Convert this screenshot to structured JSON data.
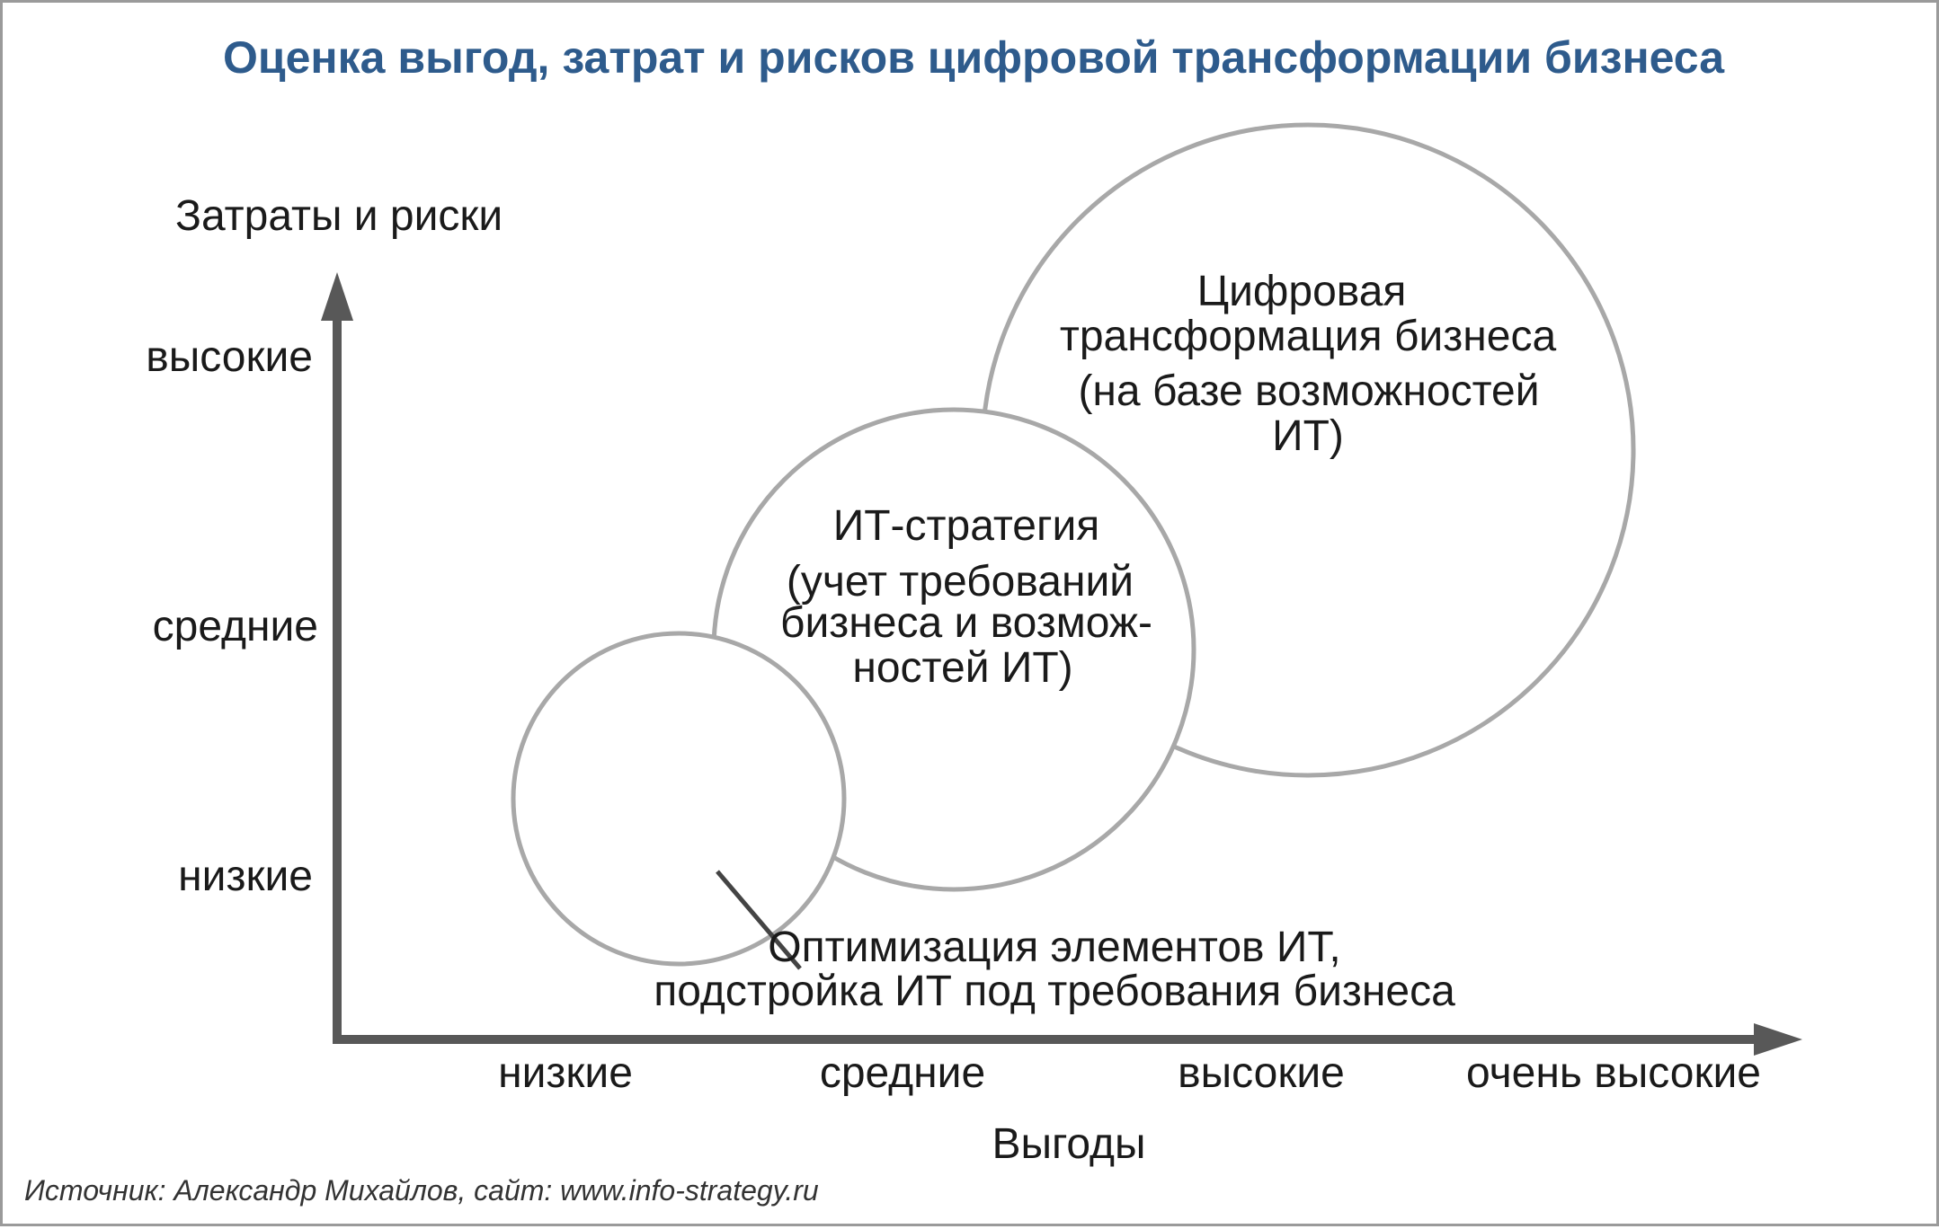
{
  "title": "Оценка выгод, затрат и рисков цифровой трансформации бизнеса",
  "y_axis": {
    "label": "Затраты и риски",
    "ticks": [
      "высокие",
      "средние",
      "низкие"
    ]
  },
  "x_axis": {
    "label": "Выгоды",
    "ticks": [
      "низкие",
      "средние",
      "высокие",
      "очень высокие"
    ]
  },
  "bubbles": [
    {
      "id": "digital-transformation",
      "lines": [
        "Цифровая",
        "трансформация бизнеса",
        "(на базе возможностей",
        "ИТ)"
      ]
    },
    {
      "id": "it-strategy",
      "lines": [
        "ИТ-стратегия",
        "(учет требований",
        "бизнеса и возмож-",
        "ностей ИТ)"
      ]
    },
    {
      "id": "it-optimization",
      "lines": [
        "Оптимизация элементов ИТ,",
        "подстройка ИТ под требования бизнеса"
      ]
    }
  ],
  "source": "Источник: Александр Михайлов, сайт: www.info-strategy.ru",
  "colors": {
    "title": "#2e5b8c",
    "axis": "#585858",
    "circle_stroke": "#a8a8a8",
    "border": "#9a9a9a"
  }
}
